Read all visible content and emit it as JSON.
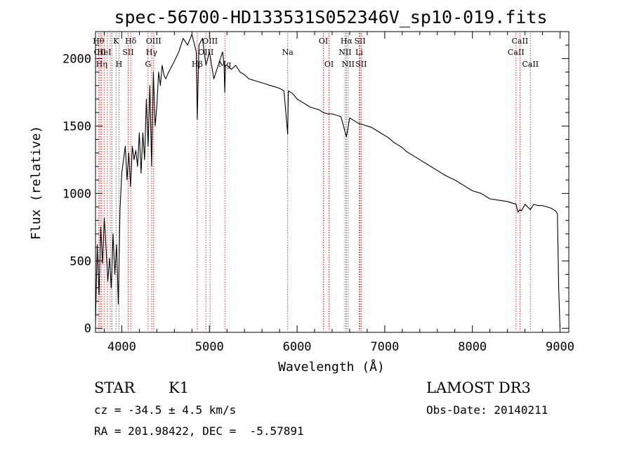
{
  "chart_data": {
    "type": "line",
    "title": "spec-56700-HD133531S052346V_sp10-019.fits",
    "xlabel": "Wavelength (Å)",
    "ylabel": "Flux (relative)",
    "xlim": [
      3700,
      9100
    ],
    "ylim": [
      -30,
      2200
    ],
    "xticks": [
      4000,
      5000,
      6000,
      7000,
      8000,
      9000
    ],
    "yticks": [
      0,
      500,
      1000,
      1500,
      2000
    ],
    "series": [
      {
        "name": "flux",
        "x": [
          3700,
          3720,
          3740,
          3760,
          3780,
          3800,
          3820,
          3840,
          3860,
          3880,
          3900,
          3920,
          3940,
          3960,
          3980,
          4000,
          4020,
          4040,
          4060,
          4080,
          4100,
          4120,
          4140,
          4160,
          4180,
          4200,
          4220,
          4240,
          4260,
          4280,
          4300,
          4320,
          4340,
          4360,
          4380,
          4400,
          4420,
          4440,
          4460,
          4480,
          4500,
          4550,
          4600,
          4650,
          4700,
          4750,
          4800,
          4850,
          4861,
          4880,
          4920,
          4960,
          5000,
          5050,
          5100,
          5150,
          5167,
          5175,
          5183,
          5200,
          5250,
          5300,
          5350,
          5400,
          5450,
          5500,
          5550,
          5600,
          5650,
          5700,
          5750,
          5800,
          5850,
          5893,
          5900,
          5950,
          6000,
          6050,
          6100,
          6150,
          6200,
          6250,
          6300,
          6350,
          6400,
          6450,
          6500,
          6563,
          6600,
          6650,
          6700,
          6750,
          6800,
          6850,
          6900,
          6950,
          7000,
          7050,
          7100,
          7150,
          7200,
          7250,
          7300,
          7400,
          7500,
          7600,
          7700,
          7800,
          7900,
          8000,
          8100,
          8200,
          8300,
          8400,
          8498,
          8520,
          8542,
          8560,
          8600,
          8662,
          8700,
          8750,
          8800,
          8850,
          8900,
          8950,
          8970,
          8985,
          9000
        ],
        "values": [
          50,
          620,
          250,
          750,
          480,
          820,
          600,
          350,
          520,
          300,
          700,
          400,
          620,
          180,
          880,
          1150,
          1250,
          1350,
          1100,
          1300,
          1050,
          1350,
          1250,
          1320,
          1200,
          1450,
          1150,
          1450,
          1250,
          1700,
          1350,
          1800,
          1200,
          1900,
          1500,
          1650,
          1900,
          1800,
          1950,
          1880,
          1850,
          1920,
          1980,
          2050,
          2150,
          2100,
          2180,
          2050,
          1550,
          2100,
          2150,
          1950,
          2050,
          1850,
          1950,
          2050,
          1950,
          1750,
          1950,
          1950,
          1920,
          1950,
          1900,
          1880,
          1850,
          1840,
          1830,
          1820,
          1810,
          1800,
          1790,
          1780,
          1760,
          1440,
          1760,
          1740,
          1700,
          1680,
          1660,
          1640,
          1630,
          1620,
          1600,
          1590,
          1590,
          1580,
          1570,
          1420,
          1560,
          1540,
          1520,
          1510,
          1500,
          1490,
          1470,
          1450,
          1430,
          1410,
          1380,
          1360,
          1340,
          1310,
          1290,
          1250,
          1210,
          1170,
          1130,
          1100,
          1060,
          1020,
          1000,
          960,
          950,
          940,
          920,
          860,
          880,
          870,
          920,
          880,
          920,
          910,
          910,
          900,
          890,
          870,
          850,
          300,
          0
        ]
      }
    ],
    "line_markers": [
      {
        "wavelength": 3734,
        "label": "Hθ",
        "row": 1
      },
      {
        "wavelength": 3750,
        "label": "CII",
        "row": 2
      },
      {
        "wavelength": 3770,
        "label": "Hη",
        "row": 3
      },
      {
        "wavelength": 3798,
        "label": "HeI",
        "row": 2
      },
      {
        "wavelength": 3835,
        "label": "",
        "row": 0
      },
      {
        "wavelength": 3869,
        "label": "",
        "row": 0
      },
      {
        "wavelength": 3889,
        "label": "",
        "row": 0
      },
      {
        "wavelength": 3934,
        "label": "K",
        "row": 1
      },
      {
        "wavelength": 3968,
        "label": "H",
        "row": 3
      },
      {
        "wavelength": 4072,
        "label": "SII",
        "row": 2
      },
      {
        "wavelength": 4102,
        "label": "Hδ",
        "row": 1
      },
      {
        "wavelength": 4300,
        "label": "G",
        "row": 3
      },
      {
        "wavelength": 4340,
        "label": "Hγ",
        "row": 2
      },
      {
        "wavelength": 4363,
        "label": "OIII",
        "row": 1
      },
      {
        "wavelength": 4861,
        "label": "Hβ",
        "row": 3
      },
      {
        "wavelength": 4959,
        "label": "OIII",
        "row": 2
      },
      {
        "wavelength": 5007,
        "label": "OIII",
        "row": 1
      },
      {
        "wavelength": 5175,
        "label": "Mg",
        "row": 3
      },
      {
        "wavelength": 5893,
        "label": "Na",
        "row": 2
      },
      {
        "wavelength": 6300,
        "label": "OI",
        "row": 1
      },
      {
        "wavelength": 6364,
        "label": "OI",
        "row": 3
      },
      {
        "wavelength": 6548,
        "label": "NII",
        "row": 2
      },
      {
        "wavelength": 6563,
        "label": "Hα",
        "row": 1
      },
      {
        "wavelength": 6583,
        "label": "NII",
        "row": 3
      },
      {
        "wavelength": 6708,
        "label": "Li",
        "row": 2
      },
      {
        "wavelength": 6717,
        "label": "SII",
        "row": 1
      },
      {
        "wavelength": 6731,
        "label": "SII",
        "row": 3
      },
      {
        "wavelength": 8498,
        "label": "CaII",
        "row": 2
      },
      {
        "wavelength": 8542,
        "label": "CaII",
        "row": 1
      },
      {
        "wavelength": 8662,
        "label": "CaII",
        "row": 3
      }
    ]
  },
  "info": {
    "object_type": "STAR",
    "spectral_class": "K1",
    "survey": "LAMOST DR3",
    "redshift_line": "cz = -34.5 ± 4.5 km/s",
    "obs_date_line": "Obs-Date: 20140211",
    "coords_line": "RA = 201.98422, DEC =  -5.57891"
  },
  "colors": {
    "spectrum": "#000000",
    "marker": "#cc0000",
    "axes": "#000000",
    "background": "#ffffff"
  }
}
